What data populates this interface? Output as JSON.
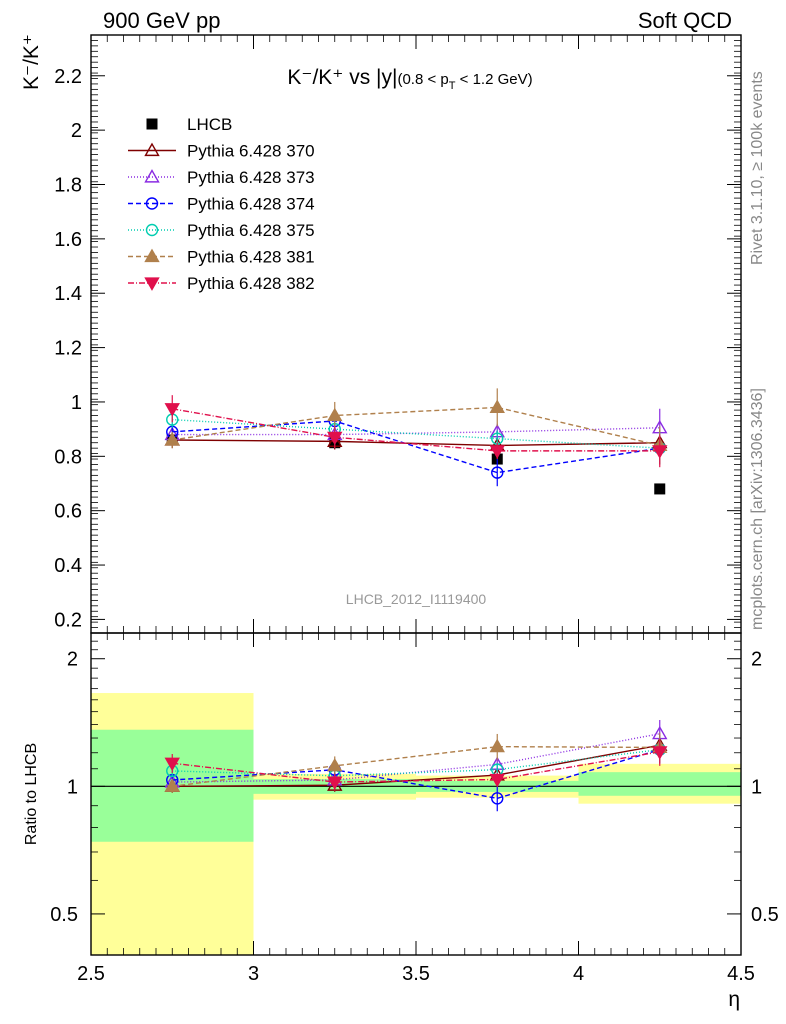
{
  "header": {
    "left": "900 GeV pp",
    "right": "Soft QCD"
  },
  "side_labels": {
    "rivet": "Rivet 3.1.10, ≥ 100k events",
    "mcplots": "mcplots.cern.ch [arXiv:1306.3436]"
  },
  "analysis_id": "LHCB_2012_I1119400",
  "chart_data": {
    "type": "scatter",
    "title": "K⁻/K⁺ vs |y|(0.8 < p_T < 1.2 GeV)",
    "title_main": "K⁻/K⁺ vs |y|",
    "title_sub": "(0.8 < p",
    "title_sub_index": "T",
    "title_sub_tail": " < 1.2 GeV)",
    "ylabel": "K⁻/K⁺",
    "xlabel": "η",
    "ratio_ylabel": "Ratio to LHCB",
    "xlim": [
      2.5,
      4.5
    ],
    "ylim": [
      0.15,
      2.35
    ],
    "ratio_ylim": [
      0.4,
      2.3
    ],
    "x_ticks": [
      2.5,
      3,
      3.5,
      4,
      4.5
    ],
    "x_tick_labels": [
      "2.5",
      "3",
      "3.5",
      "4",
      "4.5"
    ],
    "y_ticks": [
      0.2,
      0.4,
      0.6,
      0.8,
      1,
      1.2,
      1.4,
      1.6,
      1.8,
      2,
      2.2
    ],
    "y_tick_labels": [
      "0.2",
      "0.4",
      "0.6",
      "0.8",
      "1",
      "1.2",
      "1.4",
      "1.6",
      "1.8",
      "2",
      "2.2"
    ],
    "ratio_ticks": [
      0.5,
      1,
      2
    ],
    "ratio_tick_labels": [
      "0.5",
      "1",
      "2"
    ],
    "legend_position": "top-left",
    "x": [
      2.75,
      3.25,
      3.75,
      4.25
    ],
    "data": {
      "name": "LHCB",
      "color": "#000000",
      "values": [
        0.86,
        0.85,
        0.79,
        0.68
      ],
      "bins": [
        [
          2.5,
          3.0
        ],
        [
          3.0,
          3.5
        ],
        [
          3.5,
          4.0
        ],
        [
          4.0,
          4.5
        ]
      ],
      "ratio_band_inner": [
        [
          0.74,
          1.36
        ],
        [
          0.96,
          1.04
        ],
        [
          0.97,
          1.03
        ],
        [
          0.95,
          1.08
        ]
      ],
      "ratio_band_outer": [
        [
          0.35,
          1.66
        ],
        [
          0.93,
          1.07
        ],
        [
          0.94,
          1.06
        ],
        [
          0.91,
          1.13
        ]
      ]
    },
    "series": [
      {
        "name": "Pythia 6.428 370",
        "color": "#7f0000",
        "dash": "",
        "marker": "triangle-open",
        "values": [
          0.86,
          0.855,
          0.84,
          0.85
        ],
        "errors": [
          0.03,
          0.03,
          0.03,
          0.05
        ]
      },
      {
        "name": "Pythia 6.428 373",
        "color": "#8a2be2",
        "dash": "1,2",
        "marker": "triangle-open",
        "values": [
          0.88,
          0.88,
          0.89,
          0.905
        ],
        "errors": [
          0.03,
          0.03,
          0.03,
          0.07
        ]
      },
      {
        "name": "Pythia 6.428 374",
        "color": "#0000ff",
        "dash": "5,3",
        "marker": "circle-open",
        "values": [
          0.89,
          0.93,
          0.74,
          0.83
        ],
        "errors": [
          0.03,
          0.04,
          0.05,
          0.06
        ]
      },
      {
        "name": "Pythia 6.428 375",
        "color": "#00cdb0",
        "dash": "1,2",
        "marker": "circle-open",
        "values": [
          0.935,
          0.9,
          0.865,
          0.83
        ],
        "errors": [
          0.03,
          0.03,
          0.03,
          0.06
        ]
      },
      {
        "name": "Pythia 6.428 381",
        "color": "#b0804c",
        "dash": "5,3",
        "marker": "triangle-filled",
        "values": [
          0.86,
          0.95,
          0.98,
          0.84
        ],
        "errors": [
          0.03,
          0.05,
          0.07,
          0.07
        ]
      },
      {
        "name": "Pythia 6.428 382",
        "color": "#e0104c",
        "dash": "6,2,1,2",
        "marker": "triangle-down-filled",
        "values": [
          0.975,
          0.87,
          0.82,
          0.82
        ],
        "errors": [
          0.05,
          0.04,
          0.03,
          0.06
        ]
      }
    ]
  }
}
